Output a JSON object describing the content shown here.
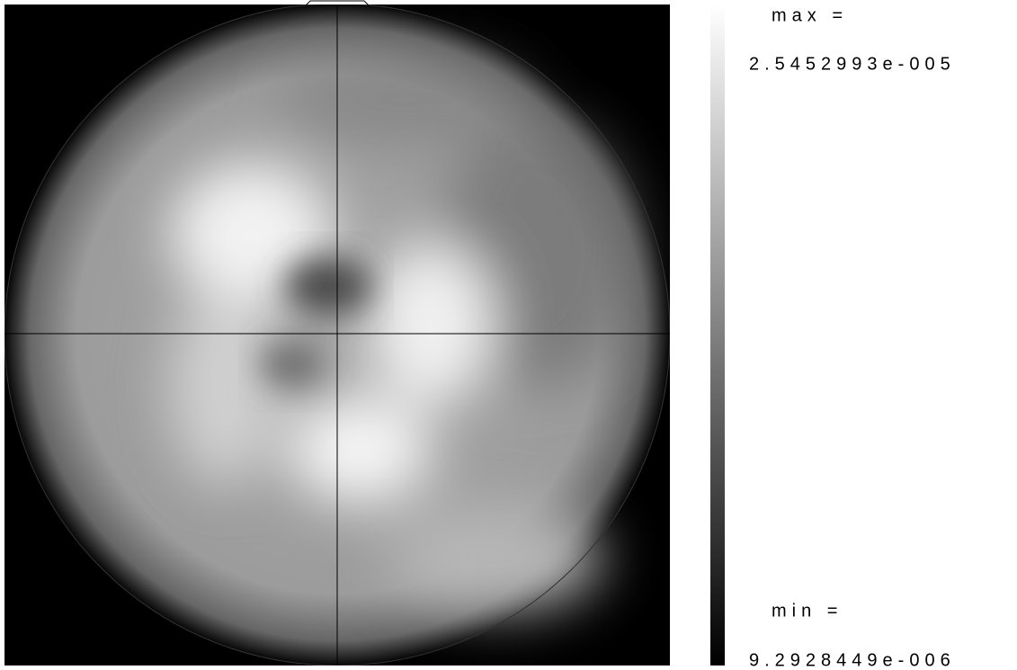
{
  "colorbar": {
    "max_label": "max =",
    "max_value": "2.5452993e-005",
    "min_label": "min =",
    "min_value": "9.2928449e-006"
  }
}
